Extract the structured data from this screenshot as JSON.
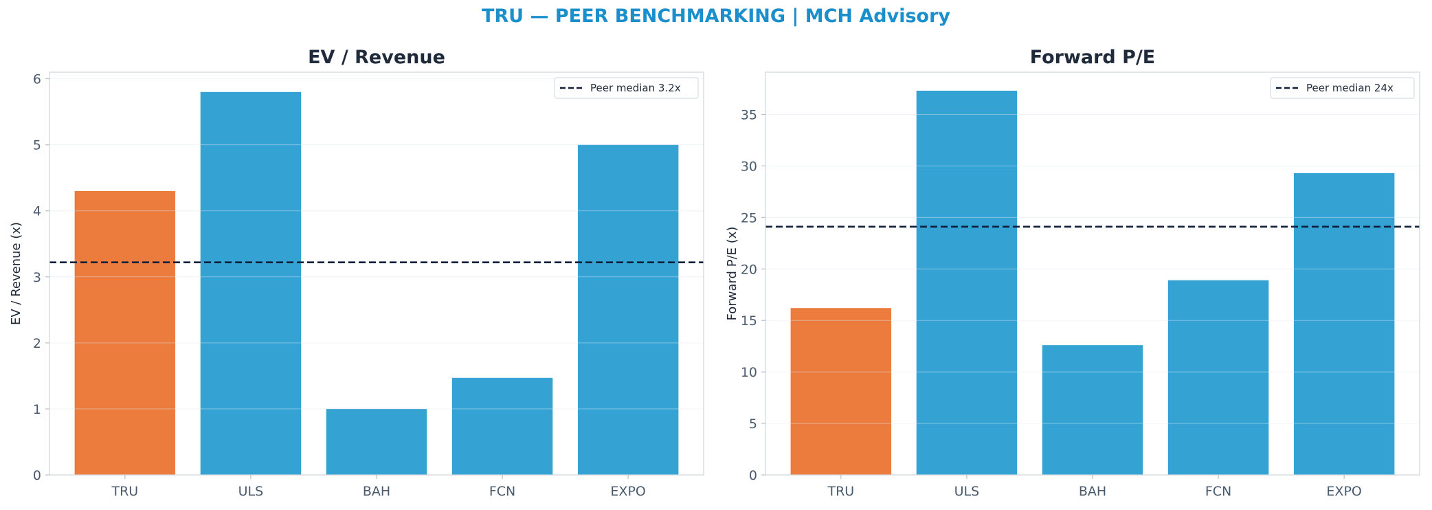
{
  "title": "TRU — PEER BENCHMARKING | MCH Advisory",
  "colors": {
    "highlight": "#ec7b3e",
    "peer": "#34a3d4",
    "median_line": "#0f1f3a"
  },
  "chart_data": [
    {
      "type": "bar",
      "title": "EV / Revenue",
      "ylabel": "EV / Revenue (x)",
      "categories": [
        "TRU",
        "ULS",
        "BAH",
        "FCN",
        "EXPO"
      ],
      "values": [
        4.3,
        5.8,
        1.0,
        1.47,
        5.0
      ],
      "highlight_category": "TRU",
      "ylim": [
        0,
        6.1
      ],
      "yticks": [
        0,
        1,
        2,
        3,
        4,
        5,
        6
      ],
      "reference_line": {
        "value": 3.22,
        "label": "Peer median 3.2x",
        "style": "dashed"
      },
      "legend_position": "top-right",
      "grid": true
    },
    {
      "type": "bar",
      "title": "Forward P/E",
      "ylabel": "Forward P/E (x)",
      "categories": [
        "TRU",
        "ULS",
        "BAH",
        "FCN",
        "EXPO"
      ],
      "values": [
        16.2,
        37.3,
        12.6,
        18.9,
        29.3
      ],
      "highlight_category": "TRU",
      "ylim": [
        0,
        39.1
      ],
      "yticks": [
        0,
        5,
        10,
        15,
        20,
        25,
        30,
        35
      ],
      "reference_line": {
        "value": 24.1,
        "label": "Peer median 24x",
        "style": "dashed"
      },
      "legend_position": "top-right",
      "grid": true
    }
  ]
}
